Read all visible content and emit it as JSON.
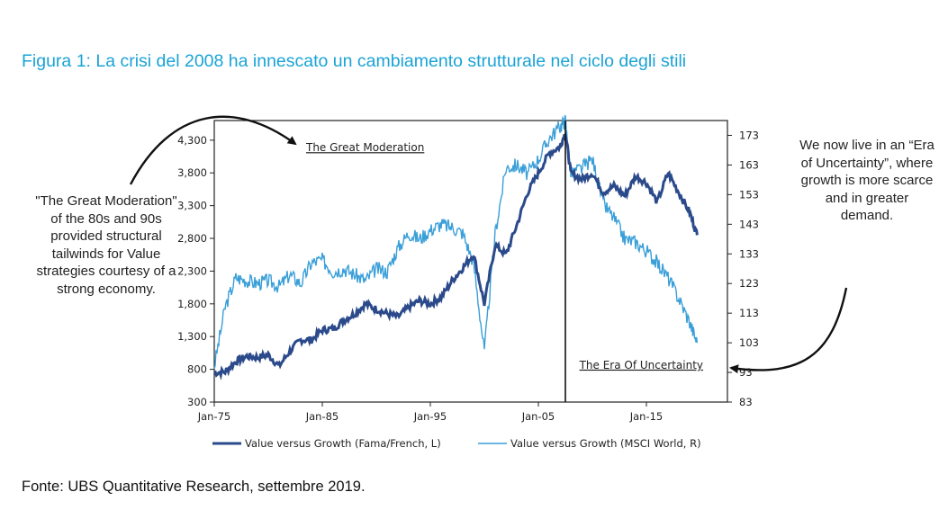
{
  "title": "Figura 1: La crisi del 2008 ha innescato un cambiamento strutturale nel ciclo degli stili",
  "source": "Fonte: UBS Quantitative Research, settembre 2019.",
  "notes": {
    "left": "\"The Great Moderation\" of the 80s and 90s provided structural tailwinds for Value strategies courtesy of a strong economy.",
    "right": "We now live in an “Era of Uncertainty”, where growth is more scarce and in greater demand."
  },
  "colors": {
    "title": "#1aa3d6",
    "dark_series": "#2b4a8b",
    "light_series": "#3a9fd8"
  },
  "chart_data": {
    "type": "line",
    "title": "",
    "xlabel": "",
    "x_ticks": [
      "Jan-75",
      "Jan-85",
      "Jan-95",
      "Jan-05",
      "Jan-15"
    ],
    "x_tick_years": [
      1975,
      1985,
      1995,
      2005,
      2015
    ],
    "xlim": [
      1975,
      2022.5
    ],
    "y_left": {
      "ticks": [
        "300",
        "800",
        "1,300",
        "1,800",
        "2,300",
        "2,800",
        "3,300",
        "3,800",
        "4,300"
      ],
      "ylim": [
        300,
        4600
      ]
    },
    "y_right": {
      "ticks": [
        "83",
        "93",
        "103",
        "113",
        "123",
        "133",
        "143",
        "153",
        "163",
        "173"
      ],
      "ylim": [
        83,
        178
      ]
    },
    "annotations": [
      {
        "text": "The Great Moderation",
        "year": 1983.5,
        "value_left": 4130
      },
      {
        "text": "The Era Of Uncertainty",
        "year": 2008.8,
        "value_left": 810
      }
    ],
    "vertical_marker_year": 2007.5,
    "series": [
      {
        "name": "Value versus Growth (Fama/French, L)",
        "axis": "left",
        "color": "#2b4a8b",
        "x": [
          1975,
          1976,
          1977,
          1978,
          1979,
          1980,
          1981,
          1982,
          1983,
          1984,
          1985,
          1986,
          1987,
          1988,
          1989,
          1990,
          1991,
          1992,
          1993,
          1994,
          1995,
          1996,
          1997,
          1998,
          1999,
          2000,
          2001,
          2002,
          2003,
          2004,
          2005,
          2006,
          2007,
          2007.5,
          2008,
          2009,
          2010,
          2011,
          2012,
          2013,
          2014,
          2015,
          2016,
          2017,
          2018,
          2019,
          2019.7
        ],
        "values": [
          750,
          760,
          920,
          1000,
          980,
          1020,
          850,
          1080,
          1250,
          1250,
          1400,
          1420,
          1550,
          1650,
          1800,
          1720,
          1650,
          1600,
          1750,
          1850,
          1800,
          1900,
          2150,
          2350,
          2560,
          1800,
          2700,
          2550,
          3000,
          3500,
          3800,
          4100,
          4200,
          4420,
          3800,
          3700,
          3800,
          3500,
          3600,
          3450,
          3750,
          3650,
          3350,
          3800,
          3500,
          3200,
          2850
        ]
      },
      {
        "name": "Value versus Growth (MSCI World, R)",
        "axis": "right",
        "color": "#3a9fd8",
        "x": [
          1975,
          1976,
          1977,
          1978,
          1979,
          1980,
          1981,
          1982,
          1983,
          1984,
          1985,
          1986,
          1987,
          1988,
          1989,
          1990,
          1991,
          1992,
          1993,
          1994,
          1995,
          1996,
          1997,
          1998,
          1999,
          2000,
          2001,
          2002,
          2003,
          2004,
          2005,
          2006,
          2007,
          2007.5,
          2008,
          2009,
          2010,
          2011,
          2012,
          2013,
          2014,
          2015,
          2016,
          2017,
          2018,
          2019,
          2019.7
        ],
        "values": [
          95,
          115,
          125,
          124,
          123,
          124,
          122,
          126,
          123,
          130,
          131,
          127,
          128,
          126,
          124,
          128,
          127,
          135,
          140,
          138,
          141,
          143,
          142,
          140,
          130,
          100,
          140,
          162,
          163,
          160,
          165,
          172,
          176,
          178,
          160,
          162,
          165,
          150,
          145,
          138,
          137,
          134,
          130,
          125,
          118,
          110,
          103
        ]
      }
    ]
  }
}
